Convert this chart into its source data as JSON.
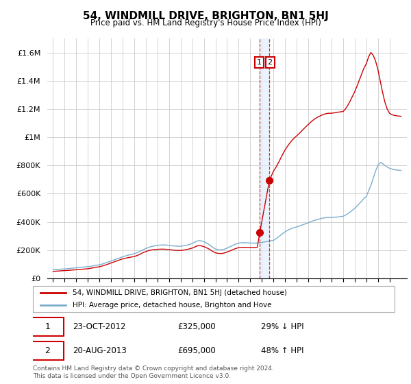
{
  "title": "54, WINDMILL DRIVE, BRIGHTON, BN1 5HJ",
  "subtitle": "Price paid vs. HM Land Registry's House Price Index (HPI)",
  "footnote": "Contains HM Land Registry data © Crown copyright and database right 2024.\nThis data is licensed under the Open Government Licence v3.0.",
  "legend_line1": "54, WINDMILL DRIVE, BRIGHTON, BN1 5HJ (detached house)",
  "legend_line2": "HPI: Average price, detached house, Brighton and Hove",
  "annotation1": {
    "num": "1",
    "date": "23-OCT-2012",
    "price": "£325,000",
    "hpi": "29% ↓ HPI"
  },
  "annotation2": {
    "num": "2",
    "date": "20-AUG-2013",
    "price": "£695,000",
    "hpi": "48% ↑ HPI"
  },
  "red_color": "#cc0000",
  "blue_color": "#7aadcc",
  "shade_color": "#ddeeff",
  "ylim": [
    0,
    1700000
  ],
  "yticks": [
    0,
    200000,
    400000,
    600000,
    800000,
    1000000,
    1200000,
    1400000,
    1600000
  ],
  "ytick_labels": [
    "£0",
    "£200K",
    "£400K",
    "£600K",
    "£800K",
    "£1M",
    "£1.2M",
    "£1.4M",
    "£1.6M"
  ],
  "sale1_x": 2012.82,
  "sale1_y": 325000,
  "sale2_x": 2013.65,
  "sale2_y": 695000,
  "xlim_left": 1994.5,
  "xlim_right": 2025.5,
  "xticks": [
    1995,
    1996,
    1997,
    1998,
    1999,
    2000,
    2001,
    2002,
    2003,
    2004,
    2005,
    2006,
    2007,
    2008,
    2009,
    2010,
    2011,
    2012,
    2013,
    2014,
    2015,
    2016,
    2017,
    2018,
    2019,
    2020,
    2021,
    2022,
    2023,
    2024
  ],
  "hpi_x": [
    1995.0,
    1995.1,
    1995.2,
    1995.3,
    1995.4,
    1995.5,
    1995.6,
    1995.7,
    1995.8,
    1995.9,
    1996.0,
    1996.1,
    1996.2,
    1996.3,
    1996.4,
    1996.5,
    1996.6,
    1996.7,
    1996.8,
    1996.9,
    1997.0,
    1997.2,
    1997.4,
    1997.6,
    1997.8,
    1998.0,
    1998.2,
    1998.4,
    1998.6,
    1998.8,
    1999.0,
    1999.2,
    1999.4,
    1999.6,
    1999.8,
    2000.0,
    2000.2,
    2000.4,
    2000.6,
    2000.8,
    2001.0,
    2001.2,
    2001.4,
    2001.6,
    2001.8,
    2002.0,
    2002.2,
    2002.4,
    2002.6,
    2002.8,
    2003.0,
    2003.2,
    2003.4,
    2003.6,
    2003.8,
    2004.0,
    2004.2,
    2004.4,
    2004.6,
    2004.8,
    2005.0,
    2005.2,
    2005.4,
    2005.6,
    2005.8,
    2006.0,
    2006.2,
    2006.4,
    2006.6,
    2006.8,
    2007.0,
    2007.2,
    2007.4,
    2007.6,
    2007.8,
    2008.0,
    2008.2,
    2008.4,
    2008.6,
    2008.8,
    2009.0,
    2009.2,
    2009.4,
    2009.6,
    2009.8,
    2010.0,
    2010.2,
    2010.4,
    2010.6,
    2010.8,
    2011.0,
    2011.2,
    2011.4,
    2011.6,
    2011.8,
    2012.0,
    2012.2,
    2012.4,
    2012.6,
    2012.82,
    2013.0,
    2013.2,
    2013.4,
    2013.65,
    2014.0,
    2014.2,
    2014.4,
    2014.6,
    2014.8,
    2015.0,
    2015.2,
    2015.4,
    2015.6,
    2015.8,
    2016.0,
    2016.2,
    2016.4,
    2016.6,
    2016.8,
    2017.0,
    2017.2,
    2017.4,
    2017.6,
    2017.8,
    2018.0,
    2018.2,
    2018.4,
    2018.6,
    2018.8,
    2019.0,
    2019.2,
    2019.4,
    2019.6,
    2019.8,
    2020.0,
    2020.2,
    2020.4,
    2020.6,
    2020.8,
    2021.0,
    2021.2,
    2021.4,
    2021.6,
    2021.8,
    2022.0,
    2022.2,
    2022.4,
    2022.6,
    2022.8,
    2023.0,
    2023.2,
    2023.4,
    2023.6,
    2023.8,
    2024.0,
    2024.2,
    2024.4,
    2024.6,
    2024.8,
    2025.0
  ],
  "hpi_y": [
    62000,
    62500,
    63000,
    63500,
    64000,
    64500,
    65000,
    65500,
    66000,
    66500,
    67000,
    67800,
    68600,
    69400,
    70200,
    71000,
    71800,
    72600,
    73400,
    74200,
    75000,
    76500,
    78000,
    79500,
    81000,
    82500,
    85000,
    88000,
    91000,
    94000,
    97000,
    101000,
    106000,
    111000,
    117000,
    123000,
    129000,
    135000,
    141000,
    147000,
    153000,
    158000,
    163000,
    167000,
    171000,
    175000,
    181000,
    188000,
    196000,
    204000,
    212000,
    218000,
    224000,
    228000,
    231000,
    234000,
    236000,
    237000,
    237000,
    236000,
    234000,
    232000,
    230000,
    229000,
    228000,
    228000,
    230000,
    233000,
    237000,
    242000,
    248000,
    256000,
    264000,
    268000,
    265000,
    260000,
    252000,
    242000,
    230000,
    218000,
    208000,
    204000,
    202000,
    203000,
    208000,
    215000,
    222000,
    230000,
    238000,
    245000,
    250000,
    252000,
    253000,
    253000,
    252000,
    251000,
    250000,
    250000,
    251000,
    253000,
    255000,
    258000,
    261000,
    265000,
    270000,
    280000,
    292000,
    305000,
    318000,
    330000,
    340000,
    348000,
    355000,
    360000,
    365000,
    370000,
    376000,
    382000,
    388000,
    394000,
    400000,
    407000,
    413000,
    418000,
    422000,
    426000,
    429000,
    431000,
    432000,
    432000,
    433000,
    434000,
    436000,
    438000,
    440000,
    448000,
    458000,
    470000,
    482000,
    496000,
    512000,
    530000,
    548000,
    566000,
    580000,
    620000,
    660000,
    710000,
    760000,
    800000,
    820000,
    815000,
    800000,
    790000,
    780000,
    775000,
    770000,
    768000,
    766000,
    765000
  ],
  "red_x": [
    1995.0,
    1995.1,
    1995.2,
    1995.3,
    1995.4,
    1995.5,
    1995.6,
    1995.7,
    1995.8,
    1995.9,
    1996.0,
    1996.1,
    1996.2,
    1996.3,
    1996.4,
    1996.5,
    1996.6,
    1996.7,
    1996.8,
    1996.9,
    1997.0,
    1997.2,
    1997.4,
    1997.6,
    1997.8,
    1998.0,
    1998.2,
    1998.4,
    1998.6,
    1998.8,
    1999.0,
    1999.2,
    1999.4,
    1999.6,
    1999.8,
    2000.0,
    2000.2,
    2000.4,
    2000.6,
    2000.8,
    2001.0,
    2001.2,
    2001.4,
    2001.6,
    2001.8,
    2002.0,
    2002.2,
    2002.4,
    2002.6,
    2002.8,
    2003.0,
    2003.2,
    2003.4,
    2003.6,
    2003.8,
    2004.0,
    2004.2,
    2004.4,
    2004.6,
    2004.8,
    2005.0,
    2005.2,
    2005.4,
    2005.6,
    2005.8,
    2006.0,
    2006.2,
    2006.4,
    2006.6,
    2006.8,
    2007.0,
    2007.2,
    2007.4,
    2007.6,
    2007.8,
    2008.0,
    2008.2,
    2008.4,
    2008.6,
    2008.8,
    2009.0,
    2009.2,
    2009.4,
    2009.6,
    2009.8,
    2010.0,
    2010.2,
    2010.4,
    2010.6,
    2010.8,
    2011.0,
    2011.2,
    2011.4,
    2011.6,
    2011.8,
    2012.0,
    2012.2,
    2012.4,
    2012.6,
    2012.82,
    2013.65,
    2014.0,
    2014.2,
    2014.4,
    2014.6,
    2014.8,
    2015.0,
    2015.2,
    2015.4,
    2015.6,
    2015.8,
    2016.0,
    2016.2,
    2016.4,
    2016.6,
    2016.8,
    2017.0,
    2017.2,
    2017.4,
    2017.6,
    2017.8,
    2018.0,
    2018.2,
    2018.4,
    2018.6,
    2018.8,
    2019.0,
    2019.2,
    2019.4,
    2019.6,
    2019.8,
    2020.0,
    2020.2,
    2020.4,
    2020.6,
    2020.8,
    2021.0,
    2021.2,
    2021.4,
    2021.6,
    2021.8,
    2022.0,
    2022.2,
    2022.4,
    2022.6,
    2022.8,
    2023.0,
    2023.2,
    2023.4,
    2023.6,
    2023.8,
    2024.0,
    2024.2,
    2024.4,
    2024.6,
    2024.8,
    2025.0
  ],
  "red_y": [
    50000,
    50500,
    51000,
    51500,
    52000,
    52500,
    53000,
    53500,
    54000,
    54500,
    55000,
    55600,
    56200,
    56800,
    57400,
    58000,
    58600,
    59200,
    59800,
    60400,
    61000,
    62500,
    64000,
    65500,
    67000,
    68500,
    71000,
    74000,
    77000,
    80000,
    83000,
    87000,
    92000,
    97000,
    103000,
    109000,
    115000,
    121000,
    127000,
    133000,
    138000,
    142000,
    146000,
    149000,
    152000,
    155000,
    161000,
    168000,
    176000,
    184000,
    190000,
    196000,
    200000,
    203000,
    205000,
    206000,
    207000,
    207500,
    207000,
    206000,
    204000,
    202000,
    200000,
    199000,
    198000,
    198500,
    200000,
    202500,
    206000,
    210000,
    215000,
    222000,
    229000,
    233000,
    230000,
    225000,
    218000,
    210000,
    200000,
    190000,
    181000,
    178000,
    176000,
    177000,
    181000,
    187000,
    193000,
    200000,
    207000,
    213000,
    218000,
    219000,
    220000,
    220000,
    219500,
    218500,
    218000,
    218500,
    219500,
    325000,
    695000,
    760000,
    785000,
    815000,
    848000,
    880000,
    910000,
    935000,
    958000,
    978000,
    995000,
    1010000,
    1025000,
    1042000,
    1059000,
    1075000,
    1090000,
    1106000,
    1120000,
    1132000,
    1142000,
    1150000,
    1158000,
    1164000,
    1168000,
    1170000,
    1170000,
    1172000,
    1175000,
    1178000,
    1180000,
    1182000,
    1200000,
    1225000,
    1255000,
    1288000,
    1322000,
    1362000,
    1405000,
    1448000,
    1490000,
    1520000,
    1570000,
    1600000,
    1580000,
    1540000,
    1480000,
    1400000,
    1320000,
    1250000,
    1200000,
    1170000,
    1160000,
    1155000,
    1152000,
    1150000,
    1148000
  ]
}
